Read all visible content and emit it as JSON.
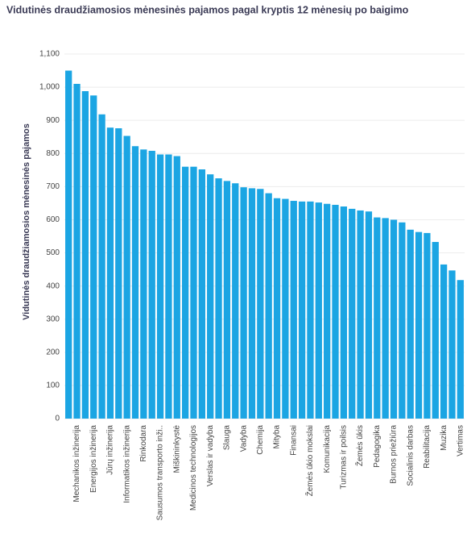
{
  "chart_data": {
    "type": "bar",
    "title": "Vidutinės draudžiamosios mėnesinės pajamos pagal kryptis 12 mėnesių po baigimo",
    "y_label": "Vidutinės draudžiamosios mėnesinės pajamos",
    "categories": [
      null,
      "Mechanikos inžinerija",
      null,
      "Energijos inžinerija",
      null,
      "Jūrų inžinerija",
      null,
      "Informatikos inžinerija",
      null,
      "Rinkodara",
      null,
      "Sausumos transporto inži..",
      null,
      "Miškininkystė",
      null,
      "Medicinos technologijos",
      null,
      "Verslas ir vadyba",
      null,
      "Slauga",
      null,
      "Vadyba",
      null,
      "Chemija",
      null,
      "Mityba",
      null,
      "Finansai",
      null,
      "Žemės ūkio mokslai",
      null,
      "Komunikacija",
      null,
      "Turizmas ir poilsis",
      null,
      "Žemės ūkis",
      null,
      "Pedagogika",
      null,
      "Burnos priežiūra",
      null,
      "Socialinis darbas",
      null,
      "Reabilitacija",
      null,
      "Muzika",
      null,
      "Vertimas"
    ],
    "values": [
      1050,
      1010,
      988,
      975,
      918,
      878,
      876,
      853,
      822,
      812,
      808,
      797,
      797,
      792,
      760,
      760,
      752,
      737,
      725,
      717,
      710,
      698,
      695,
      693,
      680,
      665,
      663,
      657,
      655,
      655,
      652,
      648,
      645,
      640,
      633,
      628,
      625,
      607,
      605,
      600,
      592,
      570,
      563,
      560,
      533,
      465,
      447,
      418
    ],
    "color": "#1ba5e3",
    "ylim": [
      0,
      1100
    ],
    "yticks": [
      0,
      100,
      200,
      300,
      400,
      500,
      600,
      700,
      800,
      900,
      {
        "value": 1000,
        "label": "1,000"
      },
      {
        "value": 1100,
        "label": "1,100"
      }
    ],
    "grid": true
  }
}
